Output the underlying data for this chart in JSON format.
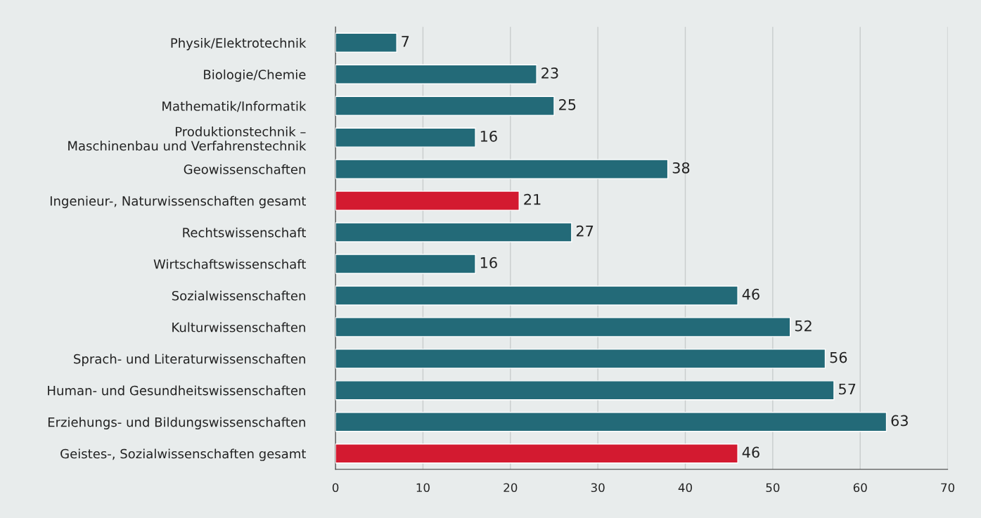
{
  "chart_data": {
    "type": "bar",
    "orientation": "horizontal",
    "categories": [
      "Physik/Elektrotechnik",
      "Biologie/Chemie",
      "Mathematik/Informatik",
      "Produktionstechnik –\nMaschinenbau und Verfahrenstechnik",
      "Geowissenschaften",
      "Ingenieur-, Naturwissenschaften gesamt",
      "Rechtswissenschaft",
      "Wirtschaftswissenschaft",
      "Sozialwissenschaften",
      "Kulturwissenschaften",
      "Sprach- und Literaturwissenschaften",
      "Human- und Gesundheitswissenschaften",
      "Erziehungs- und Bildungswissenschaften",
      "Geistes-, Sozialwissenschaften gesamt"
    ],
    "values": [
      7,
      23,
      25,
      16,
      38,
      21,
      27,
      16,
      46,
      52,
      56,
      57,
      63,
      46
    ],
    "colors": [
      "#236a78",
      "#236a78",
      "#236a78",
      "#236a78",
      "#236a78",
      "#d31a30",
      "#236a78",
      "#236a78",
      "#236a78",
      "#236a78",
      "#236a78",
      "#236a78",
      "#236a78",
      "#d31a30"
    ],
    "xlim": [
      0,
      70
    ],
    "xticks": [
      0,
      10,
      20,
      30,
      40,
      50,
      60,
      70
    ],
    "grid": "x",
    "data_labels": true
  }
}
